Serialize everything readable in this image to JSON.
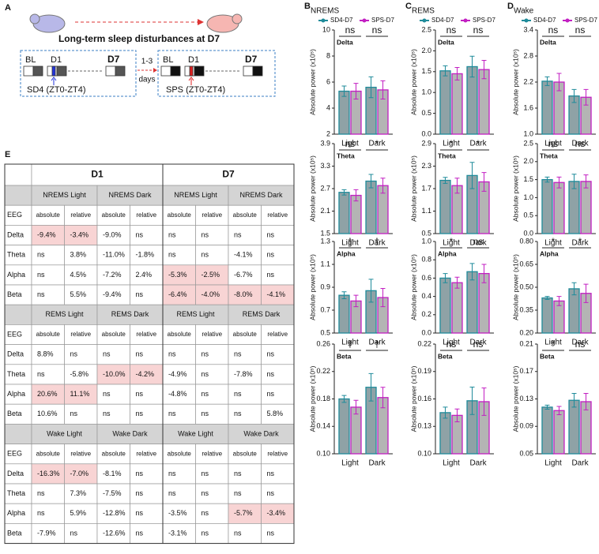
{
  "diagram": {
    "panel": "A",
    "title": "Long-term sleep disturbances at D7",
    "left": {
      "bl": "BL",
      "d1": "D1",
      "d7": "D7",
      "caption": "SD4 (ZT0-ZT4)"
    },
    "gap": {
      "top": "1-3",
      "bottom": "days"
    },
    "right": {
      "bl": "BL",
      "d1": "D1",
      "d7": "D7",
      "caption": "SPS (ZT0-ZT4)"
    }
  },
  "table": {
    "panel": "E",
    "groups": [
      "D1",
      "D7"
    ],
    "sections": [
      {
        "conditions": [
          "NREMS Light",
          "NREMS Dark",
          "NREMS Light",
          "NREMS Dark"
        ],
        "header": [
          "EEG",
          "absolute",
          "relative",
          "absolute",
          "relative",
          "absolute",
          "relative",
          "absolute",
          "relative"
        ],
        "rows": [
          [
            "Delta",
            "-9.4%",
            "-3.4%",
            "-9.0%",
            "ns",
            "ns",
            "ns",
            "ns",
            "ns"
          ],
          [
            "Theta",
            "ns",
            "3.8%",
            "-11.0%",
            "-1.8%",
            "ns",
            "ns",
            "-4.1%",
            "ns"
          ],
          [
            "Alpha",
            "ns",
            "4.5%",
            "-7.2%",
            "2.4%",
            "-5.3%",
            "-2.5%",
            "-6.7%",
            "ns"
          ],
          [
            "Beta",
            "ns",
            "5.5%",
            "-9.4%",
            "ns",
            "-6.4%",
            "-4.0%",
            "-8.0%",
            "-4.1%"
          ]
        ],
        "highlight": [
          [
            0,
            1
          ],
          [
            0,
            2
          ],
          [
            2,
            5
          ],
          [
            2,
            6
          ],
          [
            3,
            5
          ],
          [
            3,
            6
          ],
          [
            3,
            7
          ],
          [
            3,
            8
          ]
        ]
      },
      {
        "conditions": [
          "REMS Light",
          "REMS Dark",
          "REMS Light",
          "REMS Dark"
        ],
        "header": [
          "EEG",
          "absolute",
          "relative",
          "absolute",
          "relative",
          "absolute",
          "relative",
          "absolute",
          "relative"
        ],
        "rows": [
          [
            "Delta",
            "8.8%",
            "ns",
            "ns",
            "ns",
            "ns",
            "ns",
            "ns",
            "ns"
          ],
          [
            "Theta",
            "ns",
            "-5.8%",
            "-10.0%",
            "-4.2%",
            "-4.9%",
            "ns",
            "-7.8%",
            "ns"
          ],
          [
            "Alpha",
            "20.6%",
            "11.1%",
            "ns",
            "ns",
            "-4.8%",
            "ns",
            "ns",
            "ns"
          ],
          [
            "Beta",
            "10.6%",
            "ns",
            "ns",
            "ns",
            "ns",
            "ns",
            "ns",
            "5.8%"
          ]
        ],
        "highlight": [
          [
            1,
            3
          ],
          [
            1,
            4
          ],
          [
            2,
            1
          ],
          [
            2,
            2
          ]
        ]
      },
      {
        "conditions": [
          "Wake Light",
          "Wake Dark",
          "Wake Light",
          "Wake Dark"
        ],
        "header": [
          "EEG",
          "absolute",
          "relative",
          "absolute",
          "relative",
          "absolute",
          "relative",
          "absolute",
          "relative"
        ],
        "rows": [
          [
            "Delta",
            "-16.3%",
            "-7.0%",
            "-8.1%",
            "ns",
            "ns",
            "ns",
            "ns",
            "ns"
          ],
          [
            "Theta",
            "ns",
            "7.3%",
            "-7.5%",
            "ns",
            "ns",
            "ns",
            "ns",
            "ns"
          ],
          [
            "Alpha",
            "ns",
            "5.9%",
            "-12.8%",
            "ns",
            "-3.5%",
            "ns",
            "-5.7%",
            "-3.4%"
          ],
          [
            "Beta",
            "-7.9%",
            "ns",
            "-12.6%",
            "ns",
            "-3.1%",
            "ns",
            "ns",
            "ns"
          ]
        ],
        "highlight": [
          [
            0,
            1
          ],
          [
            0,
            2
          ],
          [
            2,
            7
          ],
          [
            2,
            8
          ]
        ]
      }
    ]
  },
  "chart_data": [
    {
      "type": "bar",
      "panel": "B",
      "subtitle": "NREMS",
      "title": "Delta",
      "ylabel": "Absolute power (x10⁵)",
      "categories": [
        "Light",
        "Dark"
      ],
      "ylim": [
        2,
        10
      ],
      "yticks": [
        2,
        4,
        6,
        8,
        10
      ],
      "significance": [
        "ns",
        "ns"
      ],
      "series": [
        {
          "name": "SD4-D7",
          "color": "#1f8b9a",
          "fill": "#8fa2a6",
          "values": [
            5.3,
            5.6
          ],
          "errors": [
            0.4,
            0.8
          ]
        },
        {
          "name": "SPS-D7",
          "color": "#c21fc2",
          "fill": "#b4b4b4",
          "values": [
            5.3,
            5.4
          ],
          "errors": [
            0.6,
            0.7
          ]
        }
      ]
    },
    {
      "type": "bar",
      "title": "Theta",
      "ylabel": "Absolute power (x10⁵)",
      "categories": [
        "Light",
        "Dark"
      ],
      "ylim": [
        1.5,
        3.9
      ],
      "yticks": [
        1.5,
        2.1,
        2.7,
        3.3,
        3.9
      ],
      "significance": [
        "ns",
        "*"
      ],
      "series": [
        {
          "color": "#1f8b9a",
          "fill": "#8fa2a6",
          "values": [
            2.6,
            2.9
          ],
          "errors": [
            0.07,
            0.18
          ]
        },
        {
          "color": "#c21fc2",
          "fill": "#b4b4b4",
          "values": [
            2.52,
            2.78
          ],
          "errors": [
            0.15,
            0.2
          ]
        }
      ]
    },
    {
      "type": "bar",
      "title": "Alpha",
      "ylabel": "Absolute power (x10⁵)",
      "categories": [
        "Light",
        "Dark"
      ],
      "ylim": [
        0.5,
        1.3
      ],
      "yticks": [
        0.5,
        0.7,
        0.9,
        1.1,
        1.3
      ],
      "significance": [
        "†",
        "†"
      ],
      "series": [
        {
          "color": "#1f8b9a",
          "fill": "#8fa2a6",
          "values": [
            0.83,
            0.87
          ],
          "errors": [
            0.03,
            0.1
          ]
        },
        {
          "color": "#c21fc2",
          "fill": "#b4b4b4",
          "values": [
            0.78,
            0.81
          ],
          "errors": [
            0.05,
            0.08
          ]
        }
      ]
    },
    {
      "type": "bar",
      "title": "Beta",
      "ylabel": "Absolute power (x10⁵)",
      "categories": [
        "Light",
        "Dark"
      ],
      "ylim": [
        0.1,
        0.26
      ],
      "yticks": [
        {
          "value": 0.1,
          "label": "0.10"
        },
        0.14,
        0.18,
        0.22,
        0.26
      ],
      "significance": [
        "†",
        "†"
      ],
      "series": [
        {
          "color": "#1f8b9a",
          "fill": "#8fa2a6",
          "values": [
            0.18,
            0.197
          ],
          "errors": [
            0.005,
            0.02
          ]
        },
        {
          "color": "#c21fc2",
          "fill": "#b4b4b4",
          "values": [
            0.168,
            0.182
          ],
          "errors": [
            0.01,
            0.015
          ]
        }
      ]
    },
    {
      "type": "bar",
      "panel": "C",
      "subtitle": "REMS",
      "title": "Delta",
      "ylabel": "Absolute power (x10⁵)",
      "categories": [
        "Light",
        "Dark"
      ],
      "ylim": [
        0,
        2.5
      ],
      "yticks": [
        {
          "value": 0,
          "label": "0.0"
        },
        0.5,
        {
          "value": 1,
          "label": "1.0"
        },
        1.5,
        {
          "value": 2,
          "label": "2.0"
        },
        2.5
      ],
      "significance": [
        "ns",
        "ns"
      ],
      "series": [
        {
          "name": "SD4-D7",
          "color": "#1f8b9a",
          "fill": "#8fa2a6",
          "values": [
            1.52,
            1.62
          ],
          "errors": [
            0.12,
            0.25
          ]
        },
        {
          "name": "SPS-D7",
          "color": "#c21fc2",
          "fill": "#b4b4b4",
          "values": [
            1.45,
            1.55
          ],
          "errors": [
            0.15,
            0.22
          ]
        }
      ]
    },
    {
      "type": "bar",
      "title": "Theta",
      "ylabel": "Absolute power (x10⁵)",
      "categories": [
        "Light",
        "Dark"
      ],
      "ylim": [
        0.5,
        2.9
      ],
      "yticks": [
        0.5,
        1.1,
        1.7,
        2.3,
        2.9
      ],
      "significance": [
        "*",
        "*"
      ],
      "series": [
        {
          "color": "#1f8b9a",
          "fill": "#8fa2a6",
          "values": [
            1.92,
            2.05
          ],
          "errors": [
            0.08,
            0.35
          ]
        },
        {
          "color": "#c21fc2",
          "fill": "#b4b4b4",
          "values": [
            1.78,
            1.88
          ],
          "errors": [
            0.2,
            0.25
          ]
        }
      ]
    },
    {
      "type": "bar",
      "title": "Alpha",
      "ylabel": "Absolute power (x10⁵)",
      "categories": [
        "Light",
        "Dark"
      ],
      "ylim": [
        0,
        1
      ],
      "yticks": [
        {
          "value": 0,
          "label": "0.0"
        },
        0.2,
        0.4,
        0.6,
        0.8,
        {
          "value": 1,
          "label": "1.0"
        }
      ],
      "significance": [
        "*",
        "ns"
      ],
      "series": [
        {
          "color": "#1f8b9a",
          "fill": "#8fa2a6",
          "values": [
            0.6,
            0.67
          ],
          "errors": [
            0.05,
            0.09
          ]
        },
        {
          "color": "#c21fc2",
          "fill": "#b4b4b4",
          "values": [
            0.55,
            0.65
          ],
          "errors": [
            0.06,
            0.1
          ]
        }
      ]
    },
    {
      "type": "bar",
      "title": "Beta",
      "ylabel": "Absolute power (x10⁵)",
      "categories": [
        "Light",
        "Dark"
      ],
      "ylim": [
        0.1,
        0.22
      ],
      "yticks": [
        {
          "value": 0.1,
          "label": "0.10"
        },
        0.13,
        0.16,
        0.19,
        0.22
      ],
      "significance": [
        "ns",
        "ns"
      ],
      "series": [
        {
          "color": "#1f8b9a",
          "fill": "#8fa2a6",
          "values": [
            0.145,
            0.158
          ],
          "errors": [
            0.006,
            0.015
          ]
        },
        {
          "color": "#c21fc2",
          "fill": "#b4b4b4",
          "values": [
            0.142,
            0.157
          ],
          "errors": [
            0.007,
            0.015
          ]
        }
      ]
    },
    {
      "type": "bar",
      "panel": "D",
      "subtitle": "Wake",
      "title": "Delta",
      "ylabel": "Absolute power (x10⁵)",
      "categories": [
        "Light",
        "Dark"
      ],
      "ylim": [
        1,
        3.4
      ],
      "yticks": [
        {
          "value": 1,
          "label": "1.0"
        },
        1.6,
        2.2,
        2.8,
        3.4
      ],
      "significance": [
        "ns",
        "ns"
      ],
      "series": [
        {
          "name": "SD4-D7",
          "color": "#1f8b9a",
          "fill": "#8fa2a6",
          "values": [
            2.22,
            1.88
          ],
          "errors": [
            0.1,
            0.15
          ]
        },
        {
          "name": "SPS-D7",
          "color": "#c21fc2",
          "fill": "#b4b4b4",
          "values": [
            2.2,
            1.85
          ],
          "errors": [
            0.2,
            0.18
          ]
        }
      ]
    },
    {
      "type": "bar",
      "title": "Theta",
      "ylabel": "Absolute power (x10⁵)",
      "categories": [
        "Light",
        "Dark"
      ],
      "ylim": [
        0,
        2.5
      ],
      "yticks": [
        {
          "value": 0,
          "label": "0.0"
        },
        0.5,
        {
          "value": 1,
          "label": "1.0"
        },
        1.5,
        {
          "value": 2,
          "label": "2.0"
        },
        2.5
      ],
      "significance": [
        "ns",
        "ns"
      ],
      "series": [
        {
          "color": "#1f8b9a",
          "fill": "#8fa2a6",
          "values": [
            1.5,
            1.45
          ],
          "errors": [
            0.07,
            0.2
          ]
        },
        {
          "color": "#c21fc2",
          "fill": "#b4b4b4",
          "values": [
            1.42,
            1.45
          ],
          "errors": [
            0.15,
            0.18
          ]
        }
      ]
    },
    {
      "type": "bar",
      "title": "Alpha",
      "ylabel": "Absolute power (x10⁵)",
      "categories": [
        "Light",
        "Dark"
      ],
      "ylim": [
        0.2,
        0.8
      ],
      "yticks": [
        {
          "value": 0.2,
          "label": "0.20"
        },
        0.35,
        {
          "value": 0.5,
          "label": "0.50"
        },
        0.65,
        {
          "value": 0.8,
          "label": "0.80"
        }
      ],
      "significance": [
        "*",
        "*"
      ],
      "series": [
        {
          "color": "#1f8b9a",
          "fill": "#8fa2a6",
          "values": [
            0.43,
            0.49
          ],
          "errors": [
            0.01,
            0.04
          ]
        },
        {
          "color": "#c21fc2",
          "fill": "#b4b4b4",
          "values": [
            0.41,
            0.46
          ],
          "errors": [
            0.03,
            0.06
          ]
        }
      ]
    },
    {
      "type": "bar",
      "title": "Beta",
      "ylabel": "Absolute power (x10⁵)",
      "categories": [
        "Light",
        "Dark"
      ],
      "ylim": [
        0.05,
        0.21
      ],
      "yticks": [
        0.05,
        0.09,
        0.13,
        0.17,
        0.21
      ],
      "significance": [
        "*",
        "ns"
      ],
      "series": [
        {
          "color": "#1f8b9a",
          "fill": "#8fa2a6",
          "values": [
            0.118,
            0.128
          ],
          "errors": [
            0.003,
            0.01
          ]
        },
        {
          "color": "#c21fc2",
          "fill": "#b4b4b4",
          "values": [
            0.113,
            0.126
          ],
          "errors": [
            0.006,
            0.012
          ]
        }
      ]
    }
  ]
}
